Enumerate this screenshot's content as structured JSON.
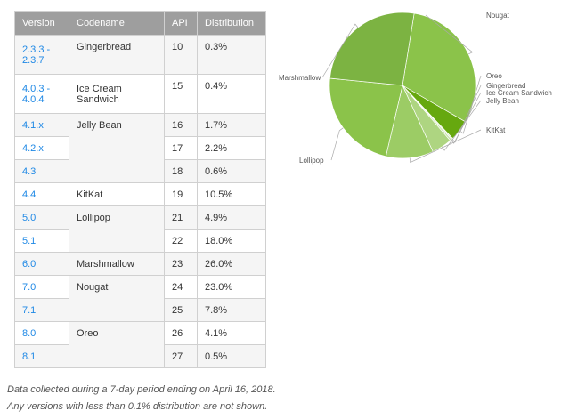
{
  "table": {
    "headers": [
      "Version",
      "Codename",
      "API",
      "Distribution"
    ],
    "rows": [
      {
        "version": "2.3.3 -\n2.3.7",
        "codename": "Gingerbread",
        "api": "10",
        "distribution": "0.3%"
      },
      {
        "version": "4.0.3 -\n4.0.4",
        "codename": "Ice Cream\nSandwich",
        "api": "15",
        "distribution": "0.4%"
      },
      {
        "version": "4.1.x",
        "codename": "Jelly Bean",
        "api": "16",
        "distribution": "1.7%"
      },
      {
        "version": "4.2.x",
        "codename": "",
        "api": "17",
        "distribution": "2.2%"
      },
      {
        "version": "4.3",
        "codename": "",
        "api": "18",
        "distribution": "0.6%"
      },
      {
        "version": "4.4",
        "codename": "KitKat",
        "api": "19",
        "distribution": "10.5%"
      },
      {
        "version": "5.0",
        "codename": "Lollipop",
        "api": "21",
        "distribution": "4.9%"
      },
      {
        "version": "5.1",
        "codename": "",
        "api": "22",
        "distribution": "18.0%"
      },
      {
        "version": "6.0",
        "codename": "Marshmallow",
        "api": "23",
        "distribution": "26.0%"
      },
      {
        "version": "7.0",
        "codename": "Nougat",
        "api": "24",
        "distribution": "23.0%"
      },
      {
        "version": "7.1",
        "codename": "",
        "api": "25",
        "distribution": "7.8%"
      },
      {
        "version": "8.0",
        "codename": "Oreo",
        "api": "26",
        "distribution": "4.1%"
      },
      {
        "version": "8.1",
        "codename": "",
        "api": "27",
        "distribution": "0.5%"
      }
    ]
  },
  "notes": {
    "line1": "Data collected during a 7-day period ending on April 16, 2018.",
    "line2": "Any versions with less than 0.1% distribution are not shown."
  },
  "chart_data": {
    "type": "pie",
    "categories": [
      "Nougat",
      "Oreo",
      "Gingerbread",
      "Ice Cream Sandwich",
      "Jelly Bean",
      "KitKat",
      "Lollipop",
      "Marshmallow"
    ],
    "values": [
      30.8,
      4.6,
      0.3,
      0.4,
      4.5,
      10.5,
      22.9,
      26.0
    ],
    "colors": [
      "#8bc34a",
      "#66a80f",
      "#dcedc8",
      "#c5e1a5",
      "#aed581",
      "#9ccc65",
      "#8bc34a",
      "#7cb342"
    ]
  }
}
